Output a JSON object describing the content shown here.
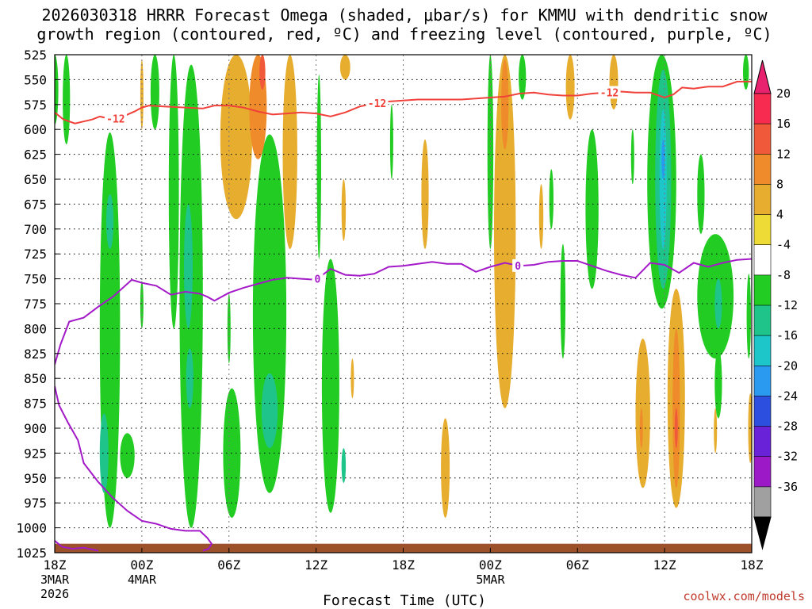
{
  "chart_data": {
    "type": "heatmap",
    "title": {
      "line1": "2026030318 HRRR Forecast Omega (shaded, μbar/s) for KMMU with dendritic snow",
      "line2": "growth region (contoured, red, ºC) and freezing level (contoured, purple, ºC)"
    },
    "xlabel": "Forecast Time (UTC)",
    "credit": "coolwx.com/models",
    "x_range_hours": [
      0,
      48
    ],
    "y_range_mb": [
      525,
      1025
    ],
    "x_ticks": [
      {
        "h": 0,
        "label": "18Z",
        "sub1": "3MAR",
        "sub2": "2026"
      },
      {
        "h": 6,
        "label": "00Z",
        "sub1": "4MAR",
        "sub2": ""
      },
      {
        "h": 12,
        "label": "06Z",
        "sub1": "",
        "sub2": ""
      },
      {
        "h": 18,
        "label": "12Z",
        "sub1": "",
        "sub2": ""
      },
      {
        "h": 24,
        "label": "18Z",
        "sub1": "",
        "sub2": ""
      },
      {
        "h": 30,
        "label": "00Z",
        "sub1": "5MAR",
        "sub2": ""
      },
      {
        "h": 36,
        "label": "06Z",
        "sub1": "",
        "sub2": ""
      },
      {
        "h": 42,
        "label": "12Z",
        "sub1": "",
        "sub2": ""
      },
      {
        "h": 48,
        "label": "18Z",
        "sub1": "",
        "sub2": ""
      }
    ],
    "y_ticks": [
      "525",
      "550",
      "575",
      "600",
      "625",
      "650",
      "675",
      "700",
      "725",
      "750",
      "775",
      "800",
      "825",
      "850",
      "875",
      "900",
      "925",
      "950",
      "975",
      "1000",
      "1025"
    ],
    "colorbar": {
      "labels": [
        "20",
        "16",
        "12",
        "8",
        "4",
        "-4",
        "-8",
        "-12",
        "-16",
        "-20",
        "-24",
        "-28",
        "-32",
        "-36"
      ],
      "colors": [
        "#f72a4f",
        "#f05a3a",
        "#ef8b2a",
        "#e6ad2e",
        "#efdb36",
        "#ffffff",
        "#22cc22",
        "#1fc48a",
        "#1cc6c9",
        "#2a9af0",
        "#2d4fe0",
        "#6a22d8",
        "#9b19c7",
        "#a0a0a0"
      ],
      "top_arrow": "#e8226e",
      "bottom_arrow": "#000000"
    },
    "contours": {
      "dgz_red": {
        "color": "#f0413a",
        "label": "-12",
        "label_hours": [
          4.2,
          22.2,
          38.2
        ],
        "points": [
          [
            0,
            583
          ],
          [
            0.6,
            590
          ],
          [
            1.4,
            594
          ],
          [
            2.6,
            590
          ],
          [
            3.1,
            587
          ],
          [
            4,
            590
          ],
          [
            4.7,
            587
          ],
          [
            5.5,
            582
          ],
          [
            6,
            578
          ],
          [
            6.5,
            576
          ],
          [
            7.5,
            577
          ],
          [
            9,
            578
          ],
          [
            10.2,
            579
          ],
          [
            11,
            576
          ],
          [
            12,
            576
          ],
          [
            13,
            578
          ],
          [
            14,
            582
          ],
          [
            15,
            585
          ],
          [
            16,
            584
          ],
          [
            17,
            583
          ],
          [
            18,
            584
          ],
          [
            19,
            587
          ],
          [
            20,
            583
          ],
          [
            21,
            577
          ],
          [
            22,
            574
          ],
          [
            23,
            572
          ],
          [
            24,
            571
          ],
          [
            25,
            570
          ],
          [
            26,
            570
          ],
          [
            28,
            570
          ],
          [
            30,
            568
          ],
          [
            31,
            567
          ],
          [
            32,
            564
          ],
          [
            33,
            563
          ],
          [
            34,
            565
          ],
          [
            35,
            566
          ],
          [
            36,
            566
          ],
          [
            37,
            564
          ],
          [
            38,
            563
          ],
          [
            39,
            562
          ],
          [
            40,
            563
          ],
          [
            41,
            563
          ],
          [
            41.6,
            566
          ],
          [
            42,
            568
          ],
          [
            42.6,
            565
          ],
          [
            43.2,
            558
          ],
          [
            44,
            559
          ],
          [
            45,
            557
          ],
          [
            46,
            557
          ],
          [
            47,
            552
          ],
          [
            48,
            552
          ]
        ]
      },
      "frz_purple": {
        "color": "#a41ac9",
        "label": "0",
        "label_hours": [
          18.1,
          31.9
        ],
        "points": [
          [
            0,
            836
          ],
          [
            0.4,
            816
          ],
          [
            1,
            793
          ],
          [
            2,
            789
          ],
          [
            3,
            778
          ],
          [
            4,
            768
          ],
          [
            5,
            755
          ],
          [
            5.3,
            751
          ],
          [
            6,
            754
          ],
          [
            7,
            757
          ],
          [
            8,
            766
          ],
          [
            9,
            763
          ],
          [
            10,
            765
          ],
          [
            10.5,
            768
          ],
          [
            11,
            772
          ],
          [
            12,
            764
          ],
          [
            13,
            759
          ],
          [
            14,
            755
          ],
          [
            15,
            751
          ],
          [
            16,
            749
          ],
          [
            17,
            750
          ],
          [
            18,
            751
          ],
          [
            19,
            740
          ],
          [
            20,
            746
          ],
          [
            21,
            747
          ],
          [
            22,
            745
          ],
          [
            23,
            738
          ],
          [
            24,
            737
          ],
          [
            25,
            735
          ],
          [
            26,
            733
          ],
          [
            27,
            735
          ],
          [
            28,
            735
          ],
          [
            29,
            743
          ],
          [
            30,
            738
          ],
          [
            31,
            734
          ],
          [
            32,
            737
          ],
          [
            33,
            736
          ],
          [
            34,
            733
          ],
          [
            35,
            732
          ],
          [
            36,
            732
          ],
          [
            37,
            737
          ],
          [
            38,
            742
          ],
          [
            39,
            746
          ],
          [
            40,
            749
          ],
          [
            41,
            734
          ],
          [
            42,
            736
          ],
          [
            43,
            744
          ],
          [
            44,
            734
          ],
          [
            45,
            738
          ],
          [
            46,
            734
          ],
          [
            47,
            731
          ],
          [
            48,
            730
          ]
        ],
        "lower_points": [
          [
            0,
            858
          ],
          [
            0.3,
            877
          ],
          [
            0.9,
            894
          ],
          [
            1.6,
            912
          ],
          [
            2,
            935
          ],
          [
            3,
            954
          ],
          [
            4,
            970
          ],
          [
            5,
            983
          ],
          [
            6,
            993
          ],
          [
            7,
            996
          ],
          [
            8,
            1001
          ],
          [
            9,
            1003
          ],
          [
            10,
            1003
          ],
          [
            10.5,
            1010
          ],
          [
            10.8,
            1016
          ],
          [
            10.6,
            1021
          ],
          [
            10.2,
            1023
          ]
        ],
        "surface_points": [
          [
            0,
            1013
          ],
          [
            0.5,
            1019
          ],
          [
            1.2,
            1021
          ],
          [
            2,
            1020
          ],
          [
            3,
            1023
          ]
        ]
      }
    },
    "terrain": {
      "color": "#9c512b",
      "top_mb": 1016,
      "bottom_mb": 1025
    },
    "omega_fields": [
      {
        "v": -6,
        "c": 0,
        "w": 0.5,
        "p0": 525,
        "p1": 595
      },
      {
        "v": -6,
        "c": 0.8,
        "w": 0.5,
        "p0": 525,
        "p1": 615
      },
      {
        "v": -6,
        "c": 3.8,
        "w": 1.4,
        "p0": 603,
        "p1": 1000
      },
      {
        "v": -10,
        "c": 3.8,
        "w": 0.5,
        "p0": 665,
        "p1": 720
      },
      {
        "v": -10,
        "c": 3.4,
        "w": 0.6,
        "p0": 885,
        "p1": 965
      },
      {
        "v": -6,
        "c": 5.0,
        "w": 1.0,
        "p0": 905,
        "p1": 950
      },
      {
        "v": -6,
        "c": 6.9,
        "w": 0.6,
        "p0": 525,
        "p1": 600
      },
      {
        "v": -6,
        "c": 6.0,
        "w": 0.2,
        "p0": 752,
        "p1": 800
      },
      {
        "v": -6,
        "c": 8.2,
        "w": 0.7,
        "p0": 525,
        "p1": 800
      },
      {
        "v": -6,
        "c": 9.4,
        "w": 1.6,
        "p0": 535,
        "p1": 1000
      },
      {
        "v": -10,
        "c": 9.2,
        "w": 0.6,
        "p0": 675,
        "p1": 800
      },
      {
        "v": -10,
        "c": 9.3,
        "w": 0.5,
        "p0": 820,
        "p1": 880
      },
      {
        "v": -6,
        "c": 12.2,
        "w": 1.2,
        "p0": 860,
        "p1": 990
      },
      {
        "v": -6,
        "c": 14.8,
        "w": 2.3,
        "p0": 605,
        "p1": 965
      },
      {
        "v": -10,
        "c": 14.8,
        "w": 1.1,
        "p0": 845,
        "p1": 920
      },
      {
        "v": -6,
        "c": 12.0,
        "w": 0.2,
        "p0": 765,
        "p1": 835
      },
      {
        "v": -6,
        "c": 18.2,
        "w": 0.3,
        "p0": 545,
        "p1": 730
      },
      {
        "v": -6,
        "c": 19.0,
        "w": 1.2,
        "p0": 730,
        "p1": 985
      },
      {
        "v": -10,
        "c": 19.9,
        "w": 0.3,
        "p0": 920,
        "p1": 955
      },
      {
        "v": -6,
        "c": 23.2,
        "w": 0.2,
        "p0": 575,
        "p1": 650
      },
      {
        "v": -6,
        "c": 30.0,
        "w": 0.4,
        "p0": 525,
        "p1": 720
      },
      {
        "v": -6,
        "c": 30.8,
        "w": 0.3,
        "p0": 560,
        "p1": 680
      },
      {
        "v": -6,
        "c": 32.2,
        "w": 0.5,
        "p0": 525,
        "p1": 570
      },
      {
        "v": -6,
        "c": 34.2,
        "w": 0.3,
        "p0": 640,
        "p1": 700
      },
      {
        "v": -6,
        "c": 35.0,
        "w": 0.35,
        "p0": 715,
        "p1": 830
      },
      {
        "v": -6,
        "c": 37.0,
        "w": 0.9,
        "p0": 600,
        "p1": 760
      },
      {
        "v": -6,
        "c": 39.8,
        "w": 0.2,
        "p0": 600,
        "p1": 655
      },
      {
        "v": -6,
        "c": 41.8,
        "w": 2.0,
        "p0": 525,
        "p1": 780
      },
      {
        "v": -10,
        "c": 41.9,
        "w": 1.1,
        "p0": 540,
        "p1": 760
      },
      {
        "v": -14,
        "c": 41.9,
        "w": 0.5,
        "p0": 580,
        "p1": 720
      },
      {
        "v": -18,
        "c": 41.9,
        "w": 0.15,
        "p0": 610,
        "p1": 650
      },
      {
        "v": -6,
        "c": 44.5,
        "w": 0.5,
        "p0": 625,
        "p1": 705
      },
      {
        "v": -6,
        "c": 45.5,
        "w": 2.5,
        "p0": 705,
        "p1": 830
      },
      {
        "v": -6,
        "c": 45.7,
        "w": 0.5,
        "p0": 820,
        "p1": 890
      },
      {
        "v": -10,
        "c": 45.7,
        "w": 0.5,
        "p0": 750,
        "p1": 800
      },
      {
        "v": -6,
        "c": 47.6,
        "w": 0.4,
        "p0": 525,
        "p1": 560
      },
      {
        "v": -6,
        "c": 47.8,
        "w": 0.3,
        "p0": 745,
        "p1": 830
      },
      {
        "v": 6,
        "c": 6.0,
        "w": 0.15,
        "p0": 530,
        "p1": 600
      },
      {
        "v": 6,
        "c": 12.5,
        "w": 2.2,
        "p0": 525,
        "p1": 690
      },
      {
        "v": 10,
        "c": 14.0,
        "w": 1.2,
        "p0": 525,
        "p1": 630
      },
      {
        "v": 14,
        "c": 14.3,
        "w": 0.4,
        "p0": 525,
        "p1": 560
      },
      {
        "v": 6,
        "c": 16.2,
        "w": 1.0,
        "p0": 525,
        "p1": 720
      },
      {
        "v": 6,
        "c": 20.0,
        "w": 0.7,
        "p0": 525,
        "p1": 550
      },
      {
        "v": 6,
        "c": 19.9,
        "w": 0.3,
        "p0": 650,
        "p1": 712
      },
      {
        "v": 6,
        "c": 20.5,
        "w": 0.2,
        "p0": 830,
        "p1": 870
      },
      {
        "v": 6,
        "c": 25.5,
        "w": 0.5,
        "p0": 610,
        "p1": 720
      },
      {
        "v": 6,
        "c": 26.9,
        "w": 0.6,
        "p0": 890,
        "p1": 990
      },
      {
        "v": 6,
        "c": 31.0,
        "w": 1.5,
        "p0": 525,
        "p1": 880
      },
      {
        "v": 10,
        "c": 31.0,
        "w": 0.5,
        "p0": 530,
        "p1": 620
      },
      {
        "v": 6,
        "c": 33.5,
        "w": 0.3,
        "p0": 655,
        "p1": 720
      },
      {
        "v": 6,
        "c": 35.5,
        "w": 0.6,
        "p0": 525,
        "p1": 590
      },
      {
        "v": 6,
        "c": 38.5,
        "w": 0.6,
        "p0": 525,
        "p1": 580
      },
      {
        "v": 6,
        "c": 40.5,
        "w": 1.0,
        "p0": 810,
        "p1": 960
      },
      {
        "v": 10,
        "c": 40.4,
        "w": 0.2,
        "p0": 880,
        "p1": 920
      },
      {
        "v": 6,
        "c": 42.8,
        "w": 1.2,
        "p0": 760,
        "p1": 980
      },
      {
        "v": 10,
        "c": 42.8,
        "w": 0.5,
        "p0": 800,
        "p1": 960
      },
      {
        "v": 14,
        "c": 42.8,
        "w": 0.2,
        "p0": 880,
        "p1": 920
      },
      {
        "v": 6,
        "c": 45.5,
        "w": 0.2,
        "p0": 880,
        "p1": 925
      },
      {
        "v": 6,
        "c": 47.9,
        "w": 0.3,
        "p0": 865,
        "p1": 935
      }
    ]
  }
}
